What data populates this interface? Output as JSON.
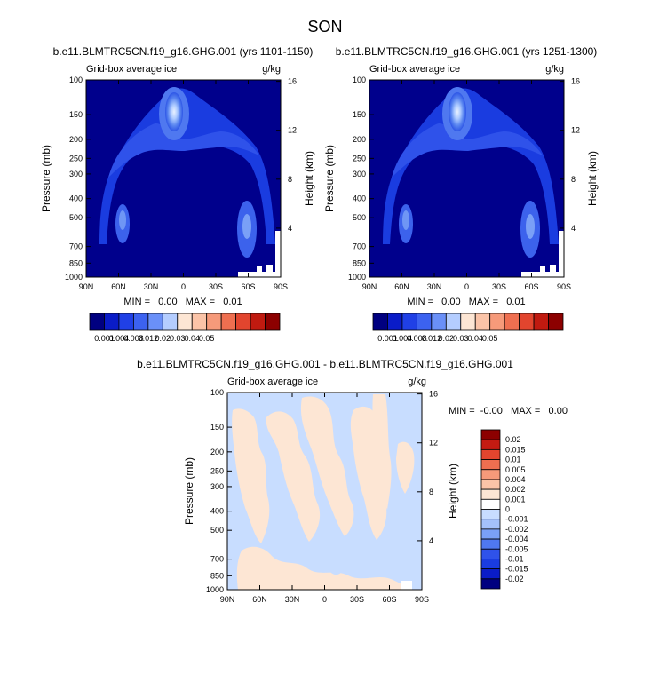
{
  "page_title": "SON",
  "colors": {
    "deep_blue": "#00008c",
    "mid_blue": "#1a3ce0",
    "light_blue": "#6690f5",
    "pale_blue": "#c8ddff",
    "pale_peach": "#fde6d4",
    "dark_red": "#8c0000"
  },
  "chart_data": [
    {
      "type": "heatmap",
      "title": "b.e11.BLMTRC5CN.f19_g16.GHG.001 (yrs 1101-1150)",
      "left_label": "Grid-box average ice",
      "right_label": "g/kg",
      "ylabel": "Pressure (mb)",
      "ylabel_right": "Height (km)",
      "x_ticks": [
        "90N",
        "60N",
        "30N",
        "0",
        "30S",
        "60S",
        "90S"
      ],
      "y_ticks": [
        "100",
        "150",
        "200",
        "250",
        "300",
        "400",
        "500",
        "700",
        "850",
        "1000"
      ],
      "y_ticks_right": [
        "16",
        "12",
        "8",
        "4"
      ],
      "stats": "MIN =   0.00   MAX =   0.01",
      "colorbar_levels": [
        "0.001",
        "0.004",
        "0.008",
        "0.012",
        "0.02",
        "0.03",
        "0.04",
        "0.05"
      ],
      "colorbar_orientation": "horizontal"
    },
    {
      "type": "heatmap",
      "title": "b.e11.BLMTRC5CN.f19_g16.GHG.001 (yrs 1251-1300)",
      "left_label": "Grid-box average ice",
      "right_label": "g/kg",
      "ylabel": "Pressure (mb)",
      "ylabel_right": "Height (km)",
      "x_ticks": [
        "90N",
        "60N",
        "30N",
        "0",
        "30S",
        "60S",
        "90S"
      ],
      "y_ticks": [
        "100",
        "150",
        "200",
        "250",
        "300",
        "400",
        "500",
        "700",
        "850",
        "1000"
      ],
      "y_ticks_right": [
        "16",
        "12",
        "8",
        "4"
      ],
      "stats": "MIN =   0.00   MAX =   0.01",
      "colorbar_levels": [
        "0.001",
        "0.004",
        "0.008",
        "0.012",
        "0.02",
        "0.03",
        "0.04",
        "0.05"
      ],
      "colorbar_orientation": "horizontal"
    },
    {
      "type": "heatmap",
      "title": "b.e11.BLMTRC5CN.f19_g16.GHG.001 - b.e11.BLMTRC5CN.f19_g16.GHG.001",
      "left_label": "Grid-box average ice",
      "right_label": "g/kg",
      "ylabel": "Pressure (mb)",
      "ylabel_right": "Height (km)",
      "x_ticks": [
        "90N",
        "60N",
        "30N",
        "0",
        "30S",
        "60S",
        "90S"
      ],
      "y_ticks": [
        "100",
        "150",
        "200",
        "250",
        "300",
        "400",
        "500",
        "700",
        "850",
        "1000"
      ],
      "y_ticks_right": [
        "16",
        "12",
        "8",
        "4"
      ],
      "stats": "MIN =  -0.00   MAX =   0.00",
      "colorbar_levels": [
        "0.02",
        "0.015",
        "0.01",
        "0.005",
        "0.004",
        "0.002",
        "0.001",
        "0",
        "-0.001",
        "-0.002",
        "-0.004",
        "-0.005",
        "-0.01",
        "-0.015",
        "-0.02"
      ],
      "colorbar_orientation": "vertical"
    }
  ]
}
